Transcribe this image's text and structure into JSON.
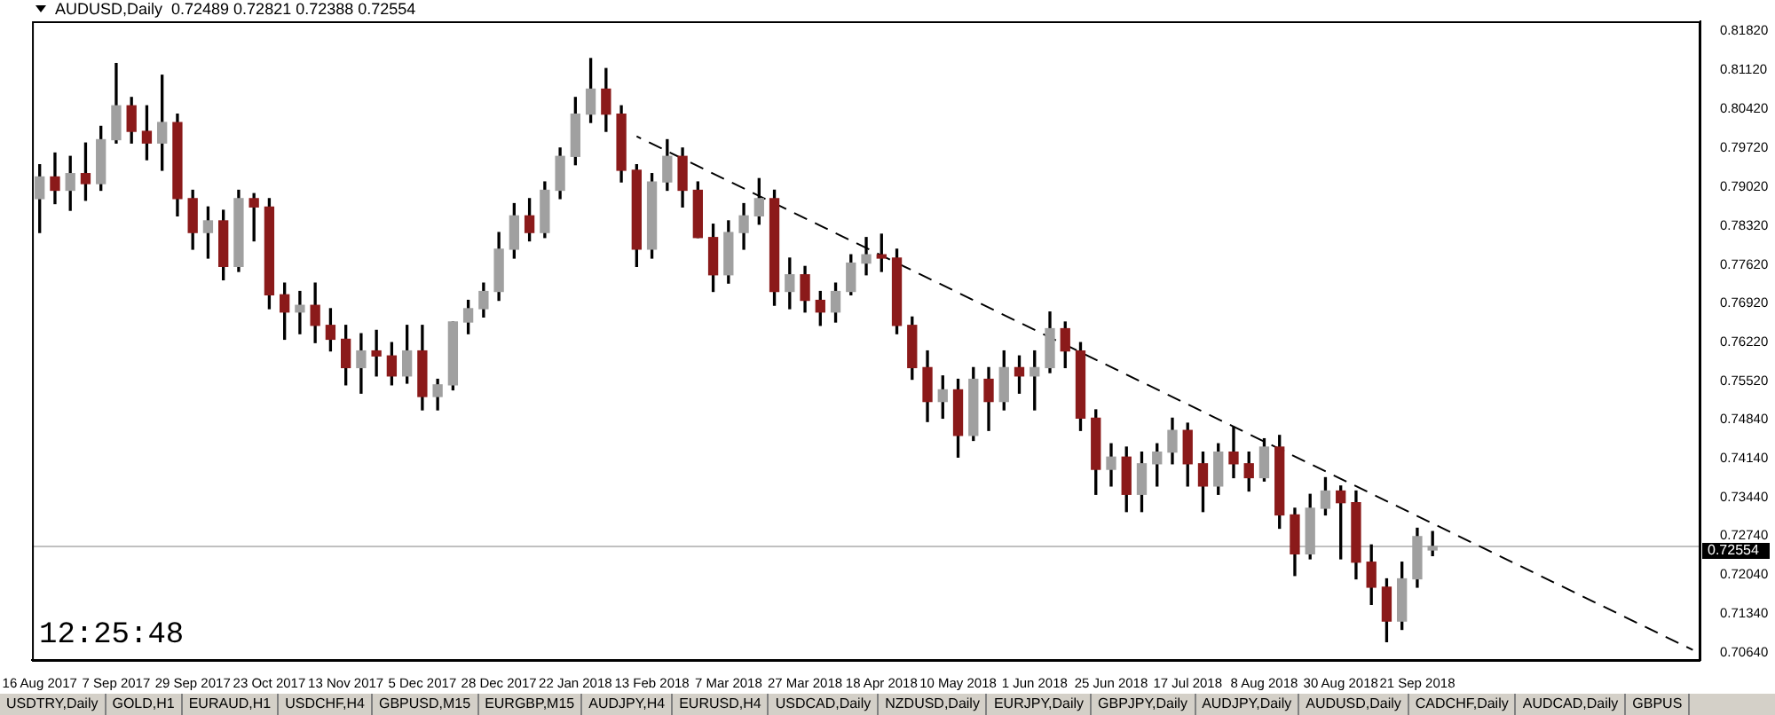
{
  "chart_data": {
    "type": "candlestick",
    "title": "AUDUSD,Daily",
    "subtitle": "0.72489 0.72821 0.72388 0.72554",
    "annotations": [
      "12:25:48",
      "USDTRY,Daily",
      "GOLD,H1",
      "EURAUD,H1",
      "USDCHF,H4",
      "GBPUSD,M15",
      "EURGBP,M15",
      "AUDJPY,H4",
      "EURUSD,H4",
      "USDCAD,Daily",
      "NZDUSD,Daily",
      "EURJPY,Daily",
      "GBPJPY,Daily",
      "AUDJPY,Daily",
      "AUDUSD,Daily",
      "CADCHF,Daily",
      "AUDCAD,Daily",
      "GBPUS"
    ],
    "categories": [
      "16 Aug 2017",
      null,
      null,
      null,
      null,
      "7 Sep 2017",
      null,
      null,
      null,
      null,
      "29 Sep 2017",
      null,
      null,
      null,
      null,
      "23 Oct 2017",
      null,
      null,
      null,
      null,
      "13 Nov 2017",
      null,
      null,
      null,
      null,
      "5 Dec 2017",
      null,
      null,
      null,
      null,
      "28 Dec 2017",
      null,
      null,
      null,
      null,
      "22 Jan 2018",
      null,
      null,
      null,
      null,
      "13 Feb 2018",
      null,
      null,
      null,
      null,
      "7 Mar 2018",
      null,
      null,
      null,
      null,
      "27 Mar 2018",
      null,
      null,
      null,
      null,
      "18 Apr 2018",
      null,
      null,
      null,
      null,
      "10 May 2018",
      null,
      null,
      null,
      null,
      "1 Jun 2018",
      null,
      null,
      null,
      null,
      "25 Jun 2018",
      null,
      null,
      null,
      null,
      "17 Jul 2018",
      null,
      null,
      null,
      null,
      "8 Aug 2018",
      null,
      null,
      null,
      null,
      "30 Aug 2018",
      null,
      null,
      null,
      null,
      "21 Sep 2018",
      null,
      null,
      null,
      null,
      null,
      null,
      null,
      null,
      null,
      null,
      null,
      null,
      null,
      null,
      null,
      null,
      null,
      null
    ],
    "ohlc": [
      [
        0.7881,
        0.7942,
        0.782,
        0.792
      ],
      [
        0.792,
        0.7963,
        0.7872,
        0.7896
      ],
      [
        0.7896,
        0.7957,
        0.786,
        0.7926
      ],
      [
        0.7926,
        0.7981,
        0.7878,
        0.7908
      ],
      [
        0.7908,
        0.8011,
        0.7896,
        0.7987
      ],
      [
        0.7987,
        0.8124,
        0.7981,
        0.8048
      ],
      [
        0.8048,
        0.8063,
        0.7981,
        0.8002
      ],
      [
        0.8002,
        0.8048,
        0.7951,
        0.7981
      ],
      [
        0.7981,
        0.8103,
        0.7932,
        0.8018
      ],
      [
        0.8018,
        0.8033,
        0.785,
        0.7881
      ],
      [
        0.7881,
        0.7896,
        0.779,
        0.782
      ],
      [
        0.782,
        0.7866,
        0.7774,
        0.7841
      ],
      [
        0.7841,
        0.786,
        0.7735,
        0.7759
      ],
      [
        0.7759,
        0.7896,
        0.775,
        0.7881
      ],
      [
        0.7881,
        0.789,
        0.7805,
        0.7866
      ],
      [
        0.7866,
        0.7881,
        0.7683,
        0.7708
      ],
      [
        0.7708,
        0.7729,
        0.7628,
        0.7677
      ],
      [
        0.7677,
        0.7714,
        0.7638,
        0.7689
      ],
      [
        0.7689,
        0.7729,
        0.7622,
        0.7653
      ],
      [
        0.7653,
        0.7683,
        0.7607,
        0.7628
      ],
      [
        0.7628,
        0.7653,
        0.7546,
        0.7577
      ],
      [
        0.7577,
        0.7638,
        0.7531,
        0.7607
      ],
      [
        0.7607,
        0.7644,
        0.7562,
        0.7598
      ],
      [
        0.7598,
        0.7622,
        0.7546,
        0.7562
      ],
      [
        0.7562,
        0.7653,
        0.7549,
        0.7607
      ],
      [
        0.7607,
        0.7653,
        0.7501,
        0.7525
      ],
      [
        0.7525,
        0.7556,
        0.7501,
        0.7546
      ],
      [
        0.7546,
        0.7659,
        0.7537,
        0.7659
      ],
      [
        0.7659,
        0.7698,
        0.7638,
        0.7683
      ],
      [
        0.7683,
        0.7729,
        0.7668,
        0.7714
      ],
      [
        0.7714,
        0.782,
        0.7698,
        0.779
      ],
      [
        0.779,
        0.7872,
        0.7774,
        0.785
      ],
      [
        0.785,
        0.7881,
        0.7805,
        0.782
      ],
      [
        0.782,
        0.7911,
        0.7811,
        0.7896
      ],
      [
        0.7896,
        0.7972,
        0.7881,
        0.7957
      ],
      [
        0.7957,
        0.8063,
        0.7942,
        0.8033
      ],
      [
        0.8033,
        0.8133,
        0.8018,
        0.8078
      ],
      [
        0.8078,
        0.8115,
        0.8002,
        0.8033
      ],
      [
        0.8033,
        0.8048,
        0.7911,
        0.7932
      ],
      [
        0.7932,
        0.7942,
        0.7759,
        0.779
      ],
      [
        0.779,
        0.7926,
        0.7774,
        0.7911
      ],
      [
        0.7911,
        0.7987,
        0.7896,
        0.7957
      ],
      [
        0.7957,
        0.7972,
        0.7866,
        0.7896
      ],
      [
        0.7896,
        0.7911,
        0.7811,
        0.7811
      ],
      [
        0.7811,
        0.7835,
        0.7714,
        0.7744
      ],
      [
        0.7744,
        0.7841,
        0.7729,
        0.782
      ],
      [
        0.782,
        0.7872,
        0.779,
        0.785
      ],
      [
        0.785,
        0.7917,
        0.7835,
        0.7881
      ],
      [
        0.7881,
        0.7896,
        0.7689,
        0.7714
      ],
      [
        0.7714,
        0.7774,
        0.7683,
        0.7744
      ],
      [
        0.7744,
        0.7759,
        0.7677,
        0.7698
      ],
      [
        0.7698,
        0.7714,
        0.7653,
        0.7677
      ],
      [
        0.7677,
        0.7729,
        0.7659,
        0.7714
      ],
      [
        0.7714,
        0.778,
        0.7708,
        0.7765
      ],
      [
        0.7765,
        0.7811,
        0.7744,
        0.778
      ],
      [
        0.778,
        0.7817,
        0.775,
        0.7774
      ],
      [
        0.7774,
        0.779,
        0.7638,
        0.7653
      ],
      [
        0.7653,
        0.7668,
        0.7556,
        0.7577
      ],
      [
        0.7577,
        0.7607,
        0.748,
        0.7516
      ],
      [
        0.7516,
        0.7562,
        0.7486,
        0.7537
      ],
      [
        0.7537,
        0.7556,
        0.7416,
        0.7455
      ],
      [
        0.7455,
        0.7577,
        0.7446,
        0.7556
      ],
      [
        0.7556,
        0.7577,
        0.7464,
        0.7516
      ],
      [
        0.7516,
        0.7607,
        0.7501,
        0.7577
      ],
      [
        0.7577,
        0.7598,
        0.7531,
        0.7562
      ],
      [
        0.7562,
        0.7607,
        0.7501,
        0.7577
      ],
      [
        0.7577,
        0.7677,
        0.7568,
        0.7647
      ],
      [
        0.7647,
        0.7659,
        0.7577,
        0.7607
      ],
      [
        0.7607,
        0.7622,
        0.7464,
        0.7486
      ],
      [
        0.7486,
        0.7501,
        0.7349,
        0.7394
      ],
      [
        0.7394,
        0.744,
        0.7364,
        0.7416
      ],
      [
        0.7416,
        0.7434,
        0.7318,
        0.7349
      ],
      [
        0.7349,
        0.7425,
        0.7318,
        0.7404
      ],
      [
        0.7404,
        0.744,
        0.7364,
        0.7425
      ],
      [
        0.7425,
        0.7486,
        0.7404,
        0.7464
      ],
      [
        0.7464,
        0.7477,
        0.7364,
        0.7404
      ],
      [
        0.7404,
        0.7425,
        0.7318,
        0.7364
      ],
      [
        0.7364,
        0.744,
        0.7349,
        0.7425
      ],
      [
        0.7425,
        0.747,
        0.7379,
        0.7404
      ],
      [
        0.7404,
        0.7425,
        0.7355,
        0.7379
      ],
      [
        0.7379,
        0.7449,
        0.7373,
        0.7434
      ],
      [
        0.7434,
        0.7455,
        0.7288,
        0.7312
      ],
      [
        0.7312,
        0.7324,
        0.7203,
        0.7242
      ],
      [
        0.7242,
        0.7349,
        0.7233,
        0.7324
      ],
      [
        0.7324,
        0.7379,
        0.7312,
        0.7355
      ],
      [
        0.7355,
        0.7364,
        0.7233,
        0.7334
      ],
      [
        0.7334,
        0.7355,
        0.7197,
        0.7227
      ],
      [
        0.7227,
        0.7258,
        0.7151,
        0.7182
      ],
      [
        0.7182,
        0.7197,
        0.7084,
        0.7121
      ],
      [
        0.7121,
        0.7227,
        0.7106,
        0.7197
      ],
      [
        0.7197,
        0.7288,
        0.7182,
        0.7273
      ],
      [
        0.72489,
        0.72821,
        0.72388,
        0.72554
      ],
      null,
      null,
      null,
      null,
      null,
      null,
      null,
      null,
      null,
      null,
      null,
      null,
      null,
      null,
      null,
      null,
      null
    ],
    "colors": [
      "#a0a0a0",
      "#8b1a1a",
      "#a0a0a0",
      "#8b1a1a",
      "#a0a0a0",
      "#a0a0a0",
      "#8b1a1a",
      "#8b1a1a",
      "#a0a0a0",
      "#8b1a1a",
      "#8b1a1a",
      "#a0a0a0",
      "#8b1a1a",
      "#a0a0a0",
      "#8b1a1a",
      "#8b1a1a",
      "#8b1a1a",
      "#a0a0a0",
      "#8b1a1a",
      "#8b1a1a",
      "#8b1a1a",
      "#a0a0a0",
      "#8b1a1a",
      "#8b1a1a",
      "#a0a0a0",
      "#8b1a1a",
      "#a0a0a0",
      "#a0a0a0",
      "#a0a0a0",
      "#a0a0a0",
      "#a0a0a0",
      "#a0a0a0",
      "#8b1a1a",
      "#a0a0a0",
      "#a0a0a0",
      "#a0a0a0",
      "#a0a0a0",
      "#8b1a1a",
      "#8b1a1a",
      "#8b1a1a",
      "#a0a0a0",
      "#a0a0a0",
      "#8b1a1a",
      "#8b1a1a",
      "#8b1a1a",
      "#a0a0a0",
      "#a0a0a0",
      "#a0a0a0",
      "#8b1a1a",
      "#a0a0a0",
      "#8b1a1a",
      "#8b1a1a",
      "#a0a0a0",
      "#a0a0a0",
      "#a0a0a0",
      "#8b1a1a",
      "#8b1a1a",
      "#8b1a1a",
      "#8b1a1a",
      "#a0a0a0",
      "#8b1a1a",
      "#a0a0a0",
      "#8b1a1a",
      "#a0a0a0",
      "#8b1a1a",
      "#a0a0a0",
      "#a0a0a0",
      "#8b1a1a",
      "#8b1a1a",
      "#8b1a1a",
      "#a0a0a0",
      "#8b1a1a",
      "#a0a0a0",
      "#a0a0a0",
      "#a0a0a0",
      "#8b1a1a",
      "#8b1a1a",
      "#a0a0a0",
      "#8b1a1a",
      "#8b1a1a",
      "#a0a0a0",
      "#8b1a1a",
      "#8b1a1a",
      "#a0a0a0",
      "#a0a0a0",
      "#8b1a1a",
      "#8b1a1a",
      "#8b1a1a",
      "#8b1a1a",
      "#a0a0a0",
      "#a0a0a0",
      "#a0a0a0",
      null,
      null,
      null,
      null,
      null,
      null,
      null,
      null,
      null,
      null,
      null,
      null,
      null,
      null,
      null,
      null,
      null
    ],
    "series": [
      {
        "type": "line",
        "line_style": "dashed",
        "color": "#000000",
        "values": [
          null,
          null,
          null,
          null,
          null,
          null,
          null,
          null,
          null,
          null,
          null,
          null,
          null,
          null,
          null,
          null,
          null,
          null,
          null,
          null,
          null,
          null,
          null,
          null,
          null,
          null,
          null,
          null,
          null,
          null,
          null,
          null,
          null,
          null,
          null,
          null,
          null,
          null,
          null,
          0.7993,
          null,
          null,
          null,
          null,
          null,
          null,
          null,
          null,
          null,
          null,
          null,
          null,
          null,
          null,
          null,
          null,
          null,
          null,
          null,
          null,
          null,
          null,
          null,
          null,
          null,
          null,
          null,
          null,
          null,
          null,
          null,
          null,
          null,
          null,
          null,
          null,
          null,
          null,
          null,
          null,
          null,
          null,
          null,
          null,
          null,
          null,
          null,
          null,
          null,
          null,
          null,
          null,
          null,
          null,
          null,
          null,
          null,
          null,
          null,
          null,
          null,
          null,
          null,
          null,
          null,
          null,
          null,
          null,
          0.7069
        ]
      }
    ],
    "ref_lines": [
      {
        "axis": "y",
        "value": 0.72554,
        "label": "0.72554",
        "color": "#c0c0c0"
      }
    ],
    "ylim": [
      0.7051,
      0.82
    ],
    "yticks": [
      {
        "value": 0.8182,
        "label": "0.81820"
      },
      {
        "value": 0.8112,
        "label": "0.81120"
      },
      {
        "value": 0.8042,
        "label": "0.80420"
      },
      {
        "value": 0.7972,
        "label": "0.79720"
      },
      {
        "value": 0.7902,
        "label": "0.79020"
      },
      {
        "value": 0.7832,
        "label": "0.78320"
      },
      {
        "value": 0.7762,
        "label": "0.77620"
      },
      {
        "value": 0.7692,
        "label": "0.76920"
      },
      {
        "value": 0.7622,
        "label": "0.76220"
      },
      {
        "value": 0.7552,
        "label": "0.75520"
      },
      {
        "value": 0.7484,
        "label": "0.74840"
      },
      {
        "value": 0.7414,
        "label": "0.74140"
      },
      {
        "value": 0.7344,
        "label": "0.73440"
      },
      {
        "value": 0.7274,
        "label": "0.72740"
      },
      {
        "value": 0.7204,
        "label": "0.72040"
      },
      {
        "value": 0.7134,
        "label": "0.71340"
      },
      {
        "value": 0.7064,
        "label": "0.70640"
      }
    ]
  }
}
